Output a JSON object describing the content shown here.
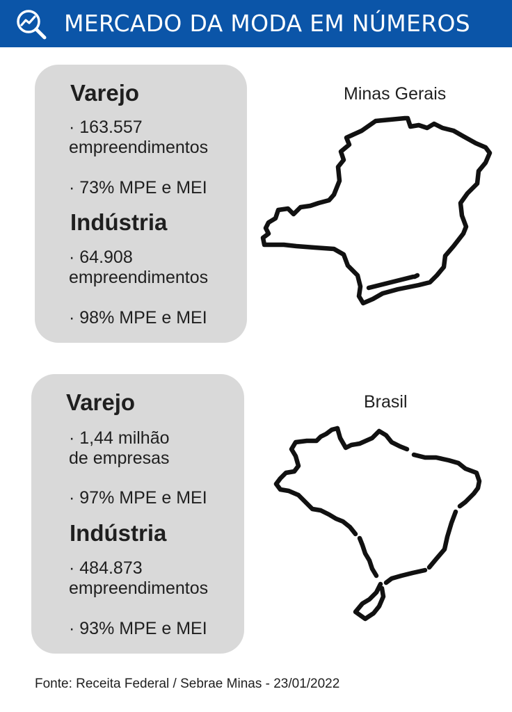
{
  "header": {
    "title": "MERCADO DA MODA EM NÚMEROS",
    "icon": "chart-search-icon",
    "background": "#0b55a8"
  },
  "minas": {
    "map_label": "Minas Gerais",
    "retail": {
      "title": "Varejo",
      "count_line1": "· 163.557",
      "count_line2": "empreendimentos",
      "share": "· 73% MPE e MEI"
    },
    "industry": {
      "title": "Indústria",
      "count_line1": "· 64.908",
      "count_line2": "empreendimentos",
      "share": "· 98% MPE e MEI"
    }
  },
  "brasil": {
    "map_label": "Brasil",
    "retail": {
      "title": "Varejo",
      "count_line1": "· 1,44 milhão",
      "count_line2": "de empresas",
      "share": "· 97% MPE e MEI"
    },
    "industry": {
      "title": "Indústria",
      "count_line1": "· 484.873",
      "count_line2": "empreendimentos",
      "share": "· 93% MPE e MEI"
    }
  },
  "footer": {
    "source": "Fonte: Receita Federal / Sebrae Minas - 23/01/2022"
  },
  "colors": {
    "card": "#d9d9d9",
    "text": "#1f1f1f"
  }
}
